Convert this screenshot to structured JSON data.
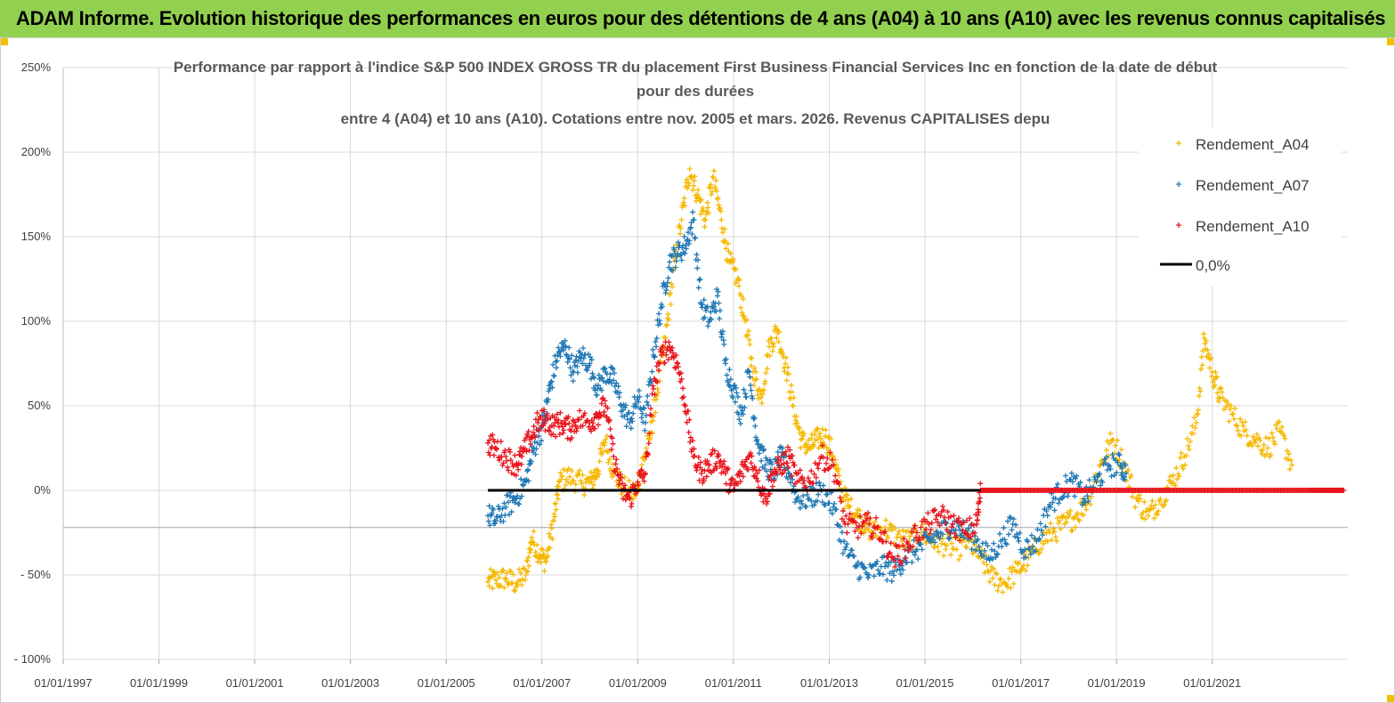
{
  "banner": {
    "title": "ADAM Informe. Evolution historique des performances en euros pour des détentions de 4 ans (A04) à 10 ans (A10) avec les revenus connus capitalisés"
  },
  "colors": {
    "banner_bg": "#92d050",
    "a04": "#f5b800",
    "a07": "#1f77b4",
    "a10": "#e8141c",
    "zero_line": "#000000",
    "grid": "#d9d9d9"
  },
  "chart_data": {
    "type": "scatter",
    "title_lines": [
      "Performance par rapport à l'indice S&P 500 INDEX GROSS TR  du placement First Business Financial Services Inc en fonction de la date de début",
      "pour des durées",
      "entre 4 (A04) et 10 ans (A10). Cotations entre nov. 2005 et mars. 2026. Revenus CAPITALISES depu"
    ],
    "x_tick_labels": [
      "01/01/1997",
      "01/01/1999",
      "01/01/2001",
      "01/01/2003",
      "01/01/2005",
      "01/01/2007",
      "01/01/2009",
      "01/01/2011",
      "01/01/2013",
      "01/01/2015",
      "01/01/2017",
      "01/01/2019",
      "01/01/2021"
    ],
    "x_range": [
      "1997-01-01",
      "2023-11-01"
    ],
    "y_tick_labels": [
      "250%",
      "200%",
      "150%",
      "100%",
      "50%",
      "0%",
      "- 50%",
      "- 100%"
    ],
    "ylim": [
      -100,
      250
    ],
    "grid": true,
    "legend_position": "top-right",
    "series": [
      {
        "name": "Rendement_A04",
        "color_key": "a04",
        "marker": "+",
        "points": [
          [
            "2005-11-15",
            -54
          ],
          [
            "2006-01-15",
            -53
          ],
          [
            "2006-04-01",
            -52
          ],
          [
            "2006-06-15",
            -55
          ],
          [
            "2006-09-01",
            -50
          ],
          [
            "2006-10-15",
            -28
          ],
          [
            "2006-12-15",
            -38
          ],
          [
            "2007-02-01",
            -42
          ],
          [
            "2007-04-01",
            -18
          ],
          [
            "2007-05-15",
            5
          ],
          [
            "2007-08-01",
            8
          ],
          [
            "2007-11-01",
            4
          ],
          [
            "2008-01-15",
            5
          ],
          [
            "2008-03-01",
            12
          ],
          [
            "2008-05-01",
            30
          ],
          [
            "2008-07-01",
            10
          ],
          [
            "2008-10-01",
            0
          ],
          [
            "2008-12-15",
            -3
          ],
          [
            "2009-02-01",
            15
          ],
          [
            "2009-04-01",
            30
          ],
          [
            "2009-06-01",
            60
          ],
          [
            "2009-08-01",
            90
          ],
          [
            "2009-10-01",
            130
          ],
          [
            "2009-12-01",
            160
          ],
          [
            "2010-02-01",
            190
          ],
          [
            "2010-04-01",
            175
          ],
          [
            "2010-06-01",
            160
          ],
          [
            "2010-08-01",
            185
          ],
          [
            "2010-10-01",
            160
          ],
          [
            "2010-12-01",
            135
          ],
          [
            "2011-02-01",
            125
          ],
          [
            "2011-04-01",
            100
          ],
          [
            "2011-06-01",
            70
          ],
          [
            "2011-08-01",
            55
          ],
          [
            "2011-10-01",
            85
          ],
          [
            "2011-12-01",
            95
          ],
          [
            "2012-02-01",
            75
          ],
          [
            "2012-04-01",
            50
          ],
          [
            "2012-06-01",
            30
          ],
          [
            "2012-08-01",
            25
          ],
          [
            "2012-10-01",
            30
          ],
          [
            "2012-12-01",
            32
          ],
          [
            "2013-02-01",
            20
          ],
          [
            "2013-04-01",
            0
          ],
          [
            "2013-06-01",
            -10
          ],
          [
            "2013-08-01",
            -15
          ],
          [
            "2013-10-01",
            -20
          ],
          [
            "2013-12-01",
            -25
          ],
          [
            "2014-03-01",
            -22
          ],
          [
            "2014-06-01",
            -28
          ],
          [
            "2014-09-01",
            -30
          ],
          [
            "2014-12-01",
            -25
          ],
          [
            "2015-03-01",
            -30
          ],
          [
            "2015-06-01",
            -32
          ],
          [
            "2015-09-01",
            -35
          ],
          [
            "2015-12-01",
            -30
          ],
          [
            "2016-03-01",
            -40
          ],
          [
            "2016-06-01",
            -52
          ],
          [
            "2016-09-01",
            -55
          ],
          [
            "2016-12-01",
            -48
          ],
          [
            "2017-03-01",
            -40
          ],
          [
            "2017-06-01",
            -30
          ],
          [
            "2017-09-01",
            -25
          ],
          [
            "2017-12-01",
            -20
          ],
          [
            "2018-03-01",
            -15
          ],
          [
            "2018-06-01",
            -5
          ],
          [
            "2018-09-01",
            15
          ],
          [
            "2018-12-01",
            30
          ],
          [
            "2019-03-01",
            15
          ],
          [
            "2019-06-01",
            -5
          ],
          [
            "2019-09-01",
            -15
          ],
          [
            "2019-12-01",
            -5
          ],
          [
            "2020-03-01",
            5
          ],
          [
            "2020-06-01",
            20
          ],
          [
            "2020-09-01",
            40
          ],
          [
            "2020-11-01",
            90
          ],
          [
            "2021-01-01",
            70
          ],
          [
            "2021-03-01",
            55
          ],
          [
            "2021-06-01",
            45
          ],
          [
            "2021-09-01",
            35
          ],
          [
            "2021-12-01",
            30
          ],
          [
            "2022-03-01",
            25
          ],
          [
            "2022-06-01",
            35
          ],
          [
            "2022-09-01",
            15
          ]
        ]
      },
      {
        "name": "Rendement_A07",
        "color_key": "a07",
        "marker": "+",
        "points": [
          [
            "2005-11-15",
            -15
          ],
          [
            "2006-01-15",
            -18
          ],
          [
            "2006-04-01",
            -10
          ],
          [
            "2006-06-15",
            -5
          ],
          [
            "2006-09-01",
            5
          ],
          [
            "2006-11-01",
            25
          ],
          [
            "2007-01-15",
            40
          ],
          [
            "2007-03-01",
            60
          ],
          [
            "2007-05-01",
            80
          ],
          [
            "2007-07-01",
            85
          ],
          [
            "2007-09-01",
            70
          ],
          [
            "2007-11-01",
            80
          ],
          [
            "2008-01-01",
            75
          ],
          [
            "2008-03-01",
            60
          ],
          [
            "2008-05-01",
            70
          ],
          [
            "2008-07-01",
            65
          ],
          [
            "2008-09-01",
            50
          ],
          [
            "2008-11-01",
            40
          ],
          [
            "2009-01-01",
            55
          ],
          [
            "2009-03-01",
            40
          ],
          [
            "2009-05-01",
            80
          ],
          [
            "2009-07-01",
            110
          ],
          [
            "2009-09-01",
            135
          ],
          [
            "2009-11-01",
            140
          ],
          [
            "2010-01-01",
            145
          ],
          [
            "2010-03-01",
            160
          ],
          [
            "2010-05-01",
            110
          ],
          [
            "2010-07-01",
            100
          ],
          [
            "2010-09-01",
            115
          ],
          [
            "2010-11-01",
            75
          ],
          [
            "2011-01-01",
            60
          ],
          [
            "2011-03-01",
            45
          ],
          [
            "2011-05-01",
            70
          ],
          [
            "2011-07-01",
            30
          ],
          [
            "2011-09-01",
            15
          ],
          [
            "2011-11-01",
            10
          ],
          [
            "2012-01-01",
            20
          ],
          [
            "2012-03-01",
            10
          ],
          [
            "2012-05-01",
            -5
          ],
          [
            "2012-08-01",
            -5
          ],
          [
            "2012-11-01",
            0
          ],
          [
            "2013-02-01",
            -10
          ],
          [
            "2013-05-01",
            -35
          ],
          [
            "2013-08-01",
            -45
          ],
          [
            "2013-11-01",
            -50
          ],
          [
            "2014-02-01",
            -45
          ],
          [
            "2014-05-01",
            -48
          ],
          [
            "2014-08-01",
            -40
          ],
          [
            "2014-11-01",
            -35
          ],
          [
            "2015-02-01",
            -30
          ],
          [
            "2015-05-01",
            -25
          ],
          [
            "2015-08-01",
            -20
          ],
          [
            "2015-11-01",
            -25
          ],
          [
            "2016-02-01",
            -30
          ],
          [
            "2016-05-01",
            -40
          ],
          [
            "2016-08-01",
            -30
          ],
          [
            "2016-11-01",
            -20
          ],
          [
            "2017-02-01",
            -35
          ],
          [
            "2017-05-01",
            -30
          ],
          [
            "2017-08-01",
            -10
          ],
          [
            "2017-11-01",
            0
          ],
          [
            "2018-02-01",
            5
          ],
          [
            "2018-05-01",
            -5
          ],
          [
            "2018-08-01",
            5
          ],
          [
            "2018-11-01",
            15
          ],
          [
            "2019-02-01",
            15
          ],
          [
            "2019-03-15",
            10
          ]
        ]
      },
      {
        "name": "Rendement_A10",
        "color_key": "a10",
        "marker": "+",
        "points": [
          [
            "2005-11-15",
            28
          ],
          [
            "2006-01-15",
            25
          ],
          [
            "2006-04-01",
            20
          ],
          [
            "2006-06-15",
            15
          ],
          [
            "2006-08-01",
            20
          ],
          [
            "2006-10-01",
            30
          ],
          [
            "2006-12-01",
            40
          ],
          [
            "2007-02-01",
            42
          ],
          [
            "2007-04-01",
            38
          ],
          [
            "2007-06-01",
            40
          ],
          [
            "2007-08-01",
            36
          ],
          [
            "2007-10-01",
            42
          ],
          [
            "2008-01-01",
            40
          ],
          [
            "2008-03-01",
            45
          ],
          [
            "2008-05-01",
            50
          ],
          [
            "2008-07-01",
            20
          ],
          [
            "2008-09-01",
            0
          ],
          [
            "2008-11-01",
            -5
          ],
          [
            "2009-01-01",
            5
          ],
          [
            "2009-03-01",
            10
          ],
          [
            "2009-05-01",
            60
          ],
          [
            "2009-07-01",
            80
          ],
          [
            "2009-09-01",
            85
          ],
          [
            "2009-11-01",
            75
          ],
          [
            "2010-01-01",
            50
          ],
          [
            "2010-03-01",
            20
          ],
          [
            "2010-05-01",
            10
          ],
          [
            "2010-07-01",
            15
          ],
          [
            "2010-09-01",
            20
          ],
          [
            "2010-11-01",
            10
          ],
          [
            "2011-01-01",
            0
          ],
          [
            "2011-03-01",
            10
          ],
          [
            "2011-05-01",
            20
          ],
          [
            "2011-07-01",
            10
          ],
          [
            "2011-09-01",
            -5
          ],
          [
            "2011-11-01",
            10
          ],
          [
            "2012-01-01",
            15
          ],
          [
            "2012-03-01",
            20
          ],
          [
            "2012-05-01",
            5
          ],
          [
            "2012-08-01",
            5
          ],
          [
            "2012-11-01",
            20
          ],
          [
            "2013-02-01",
            15
          ],
          [
            "2013-05-01",
            -20
          ],
          [
            "2013-08-01",
            -22
          ],
          [
            "2013-11-01",
            -20
          ],
          [
            "2014-02-01",
            -25
          ],
          [
            "2014-05-01",
            -40
          ],
          [
            "2014-08-01",
            -35
          ],
          [
            "2014-11-01",
            -25
          ],
          [
            "2015-02-01",
            -20
          ],
          [
            "2015-05-01",
            -15
          ],
          [
            "2015-08-01",
            -20
          ],
          [
            "2015-11-01",
            -25
          ],
          [
            "2016-02-01",
            -20
          ],
          [
            "2016-03-01",
            0
          ],
          [
            "2017-01-01",
            0
          ],
          [
            "2018-01-01",
            0
          ],
          [
            "2019-01-01",
            0
          ],
          [
            "2020-01-01",
            0
          ],
          [
            "2021-01-01",
            0
          ],
          [
            "2022-01-01",
            0
          ],
          [
            "2023-01-01",
            0
          ],
          [
            "2023-10-01",
            0
          ]
        ]
      }
    ],
    "reference_line": {
      "name": "0,0%",
      "y": 0,
      "x_start": "2005-11-15",
      "x_end": "2016-03-01"
    }
  }
}
